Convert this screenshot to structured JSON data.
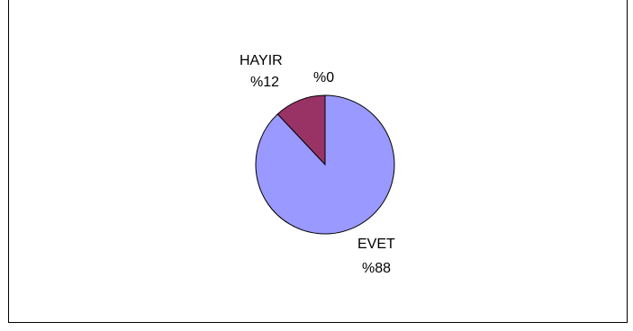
{
  "chart_data": {
    "type": "pie",
    "slices": [
      {
        "label": "EVET",
        "value_label": "%88",
        "value": 88,
        "color": "#9999ff"
      },
      {
        "label": "HAYIR",
        "value_label": "%12",
        "value": 12,
        "color": "#993366"
      },
      {
        "label": "",
        "value_label": "%0",
        "value": 0,
        "color": "#ffffcc"
      }
    ],
    "title": "",
    "legend": false
  }
}
